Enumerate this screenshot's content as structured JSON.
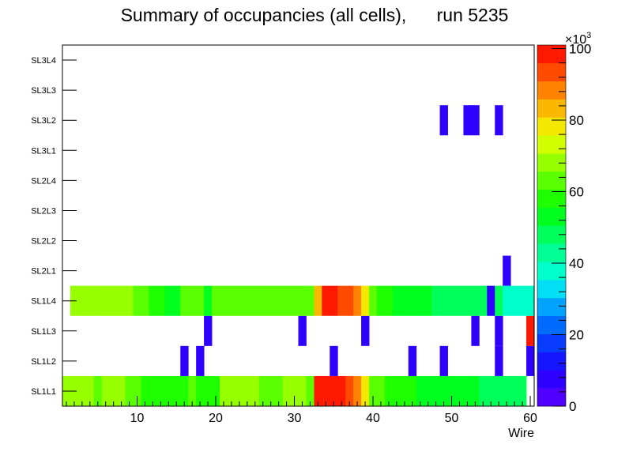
{
  "chart_data": {
    "type": "heatmap",
    "title": "Summary of occupancies (all cells),      run 5235",
    "xlabel": "Wire",
    "ylabel": "",
    "xlim": [
      0.5,
      60.5
    ],
    "x_ticks": [
      10,
      20,
      30,
      40,
      50,
      60
    ],
    "layers": [
      "SL1L1",
      "SL1L2",
      "SL1L3",
      "SL1L4",
      "SL2L1",
      "SL2L2",
      "SL2L3",
      "SL2L4",
      "SL3L1",
      "SL3L2",
      "SL3L3",
      "SL3L4"
    ],
    "zlim": [
      0,
      101
    ],
    "z_exponent_label": "×10",
    "z_exponent_power": "3",
    "z_ticks": [
      0,
      20,
      40,
      60,
      80,
      100
    ],
    "values_note": "values in units of 10^3, keyed by layer; wire:value",
    "cells": {
      "SL1L1": {
        "1": 70,
        "2": 70,
        "3": 70,
        "4": 70,
        "5": 65,
        "6": 70,
        "7": 70,
        "8": 70,
        "9": 64,
        "10": 61,
        "11": 59,
        "12": 57,
        "13": 57,
        "14": 57,
        "15": 60,
        "16": 57,
        "17": 63,
        "18": 60,
        "19": 60,
        "20": 60,
        "21": 66,
        "22": 66,
        "23": 66,
        "24": 66,
        "25": 66,
        "26": 61,
        "27": 61,
        "28": 61,
        "29": 67,
        "30": 67,
        "31": 67,
        "32": 64,
        "33": 98,
        "34": 98,
        "35": 98,
        "36": 98,
        "37": 92,
        "38": 87,
        "39": 80,
        "40": 61,
        "41": 61,
        "42": 58,
        "43": 58,
        "44": 58,
        "45": 58,
        "46": 52,
        "47": 52,
        "48": 52,
        "49": 52,
        "50": 52,
        "51": 52,
        "52": 52,
        "53": 52,
        "54": 46,
        "55": 46,
        "56": 46,
        "57": 46,
        "58": 46,
        "59": 46
      },
      "SL1L2": {
        "16": 7,
        "18": 7,
        "35": 7,
        "45": 7,
        "49": 7,
        "56": 7,
        "60": 7
      },
      "SL1L3": {
        "19": 7,
        "31": 7,
        "39": 7,
        "53": 7,
        "56": 7,
        "60": 98
      },
      "SL1L4": {
        "2": 70,
        "3": 66,
        "4": 70,
        "5": 66,
        "6": 70,
        "7": 66,
        "8": 66,
        "9": 66,
        "10": 61,
        "11": 61,
        "12": 58,
        "13": 58,
        "14": 55,
        "15": 55,
        "16": 61,
        "17": 61,
        "18": 61,
        "19": 55,
        "20": 63,
        "21": 63,
        "22": 63,
        "23": 63,
        "24": 63,
        "25": 63,
        "26": 63,
        "27": 61,
        "28": 61,
        "29": 63,
        "30": 63,
        "31": 63,
        "32": 63,
        "33": 82,
        "34": 98,
        "35": 98,
        "36": 92,
        "37": 92,
        "38": 86,
        "39": 80,
        "40": 61,
        "41": 58,
        "42": 58,
        "43": 52,
        "44": 52,
        "45": 52,
        "46": 52,
        "47": 52,
        "48": 46,
        "49": 46,
        "50": 46,
        "51": 46,
        "52": 46,
        "53": 46,
        "54": 46,
        "55": 7,
        "56": 46,
        "57": 38,
        "58": 38,
        "59": 38,
        "60": 38
      },
      "SL2L1": {
        "57": 7
      },
      "SL3L2": {
        "49": 7,
        "52": 7,
        "53": 7,
        "56": 7
      }
    }
  }
}
